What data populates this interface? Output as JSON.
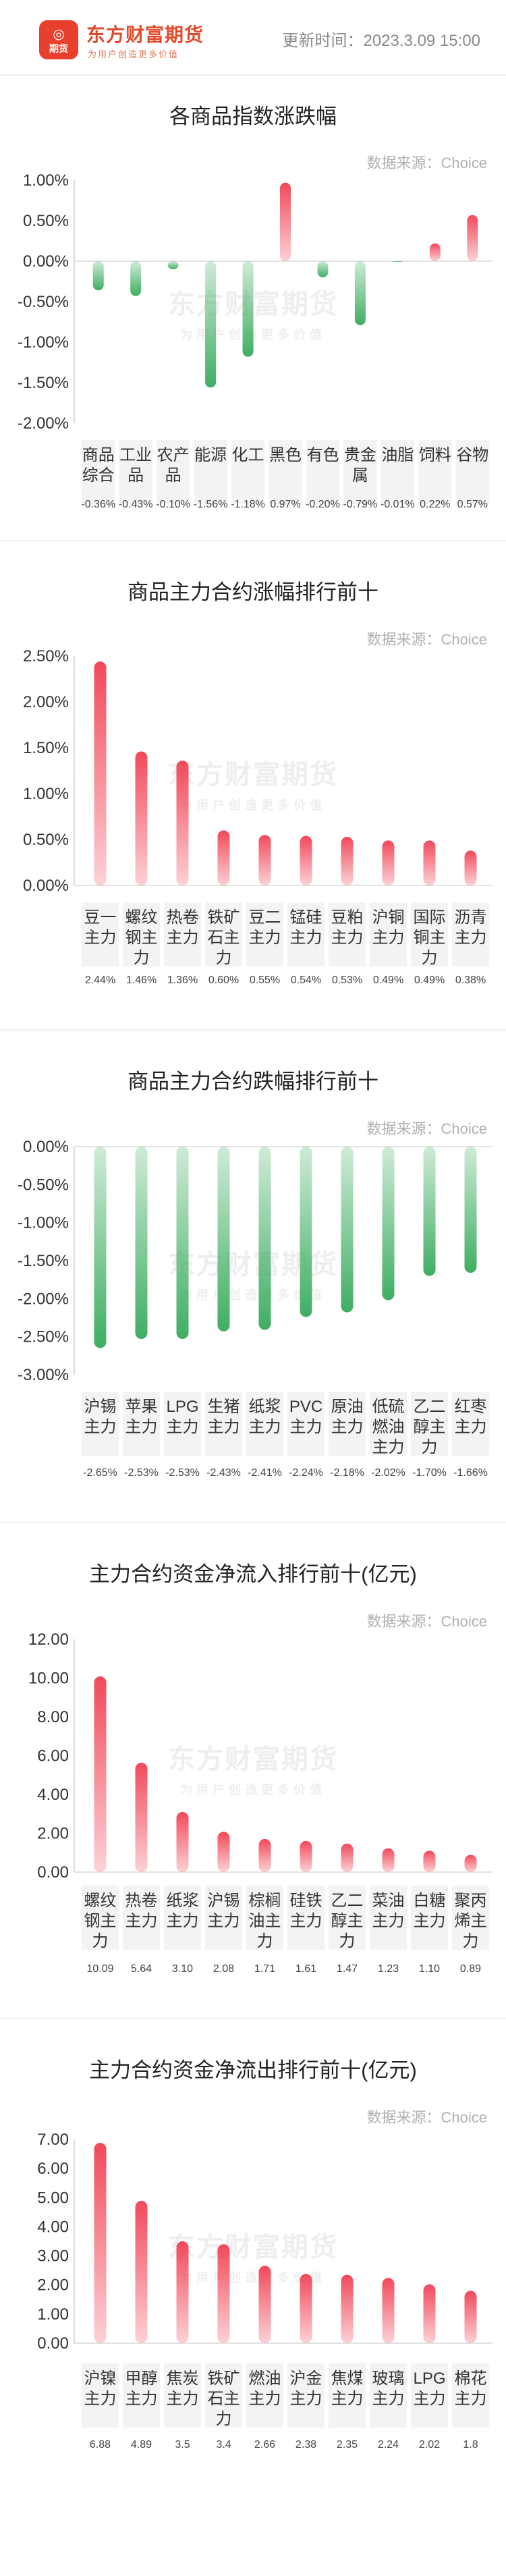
{
  "header": {
    "logo_glyph": "◎",
    "logo_sub": "期货",
    "brand_name": "东方财富期货",
    "slogan": "为用户创造更多价值",
    "update_time": "更新时间：2023.3.09 15:00"
  },
  "watermark": {
    "main": "东方财富期货",
    "sub": "为用户创造更多价值"
  },
  "colors": {
    "positive": "#f2495a",
    "negative": "#3fae62"
  },
  "sections": [
    {
      "title": "各商品指数涨跌幅",
      "source": "数据来源：Choice",
      "chart_data": {
        "type": "bar",
        "categories": [
          "商品\n综合",
          "工业\n品",
          "农产\n品",
          "能源",
          "化工",
          "黑色",
          "有色",
          "贵金\n属",
          "油脂",
          "饲料",
          "谷物"
        ],
        "values": [
          -0.36,
          -0.43,
          -0.1,
          -1.56,
          -1.18,
          0.97,
          -0.2,
          -0.79,
          -0.01,
          0.22,
          0.57
        ],
        "value_labels": [
          "-0.36%",
          "-0.43%",
          "-0.10%",
          "-1.56%",
          "-1.18%",
          "0.97%",
          "-0.20%",
          "-0.79%",
          "-0.01%",
          "0.22%",
          "0.57%"
        ],
        "ylim": [
          -2.0,
          1.0
        ],
        "yticks": [
          1.0,
          0.5,
          0.0,
          -0.5,
          -1.0,
          -1.5,
          -2.0
        ],
        "ytick_labels": [
          "1.00%",
          "0.50%",
          "0.00%",
          "-0.50%",
          "-1.00%",
          "-1.50%",
          "-2.00%"
        ],
        "xlabel": "",
        "ylabel": "",
        "grid": false
      }
    },
    {
      "title": "商品主力合约涨幅排行前十",
      "source": "数据来源：Choice",
      "chart_data": {
        "type": "bar",
        "categories": [
          "豆一\n主力",
          "螺纹\n钢主\n力",
          "热卷\n主力",
          "铁矿\n石主\n力",
          "豆二\n主力",
          "锰硅\n主力",
          "豆粕\n主力",
          "沪铜\n主力",
          "国际\n铜主\n力",
          "沥青\n主力"
        ],
        "values": [
          2.44,
          1.46,
          1.36,
          0.6,
          0.55,
          0.54,
          0.53,
          0.49,
          0.49,
          0.38
        ],
        "value_labels": [
          "2.44%",
          "1.46%",
          "1.36%",
          "0.60%",
          "0.55%",
          "0.54%",
          "0.53%",
          "0.49%",
          "0.49%",
          "0.38%"
        ],
        "ylim": [
          0,
          2.5
        ],
        "yticks": [
          2.5,
          2.0,
          1.5,
          1.0,
          0.5,
          0.0
        ],
        "ytick_labels": [
          "2.50%",
          "2.00%",
          "1.50%",
          "1.00%",
          "0.50%",
          "0.00%"
        ],
        "xlabel": "",
        "ylabel": "",
        "grid": false
      }
    },
    {
      "title": "商品主力合约跌幅排行前十",
      "source": "数据来源：Choice",
      "chart_data": {
        "type": "bar",
        "categories": [
          "沪锡\n主力",
          "苹果\n主力",
          "LPG\n主力",
          "生猪\n主力",
          "纸浆\n主力",
          "PVC\n主力",
          "原油\n主力",
          "低硫\n燃油\n主力",
          "乙二\n醇主\n力",
          "红枣\n主力"
        ],
        "values": [
          -2.65,
          -2.53,
          -2.53,
          -2.43,
          -2.41,
          -2.24,
          -2.18,
          -2.02,
          -1.7,
          -1.66
        ],
        "value_labels": [
          "-2.65%",
          "-2.53%",
          "-2.53%",
          "-2.43%",
          "-2.41%",
          "-2.24%",
          "-2.18%",
          "-2.02%",
          "-1.70%",
          "-1.66%"
        ],
        "ylim": [
          -3.0,
          0
        ],
        "yticks": [
          0.0,
          -0.5,
          -1.0,
          -1.5,
          -2.0,
          -2.5,
          -3.0
        ],
        "ytick_labels": [
          "0.00%",
          "-0.50%",
          "-1.00%",
          "-1.50%",
          "-2.00%",
          "-2.50%",
          "-3.00%"
        ],
        "xlabel": "",
        "ylabel": "",
        "grid": false
      }
    },
    {
      "title": "主力合约资金净流入排行前十(亿元)",
      "source": "数据来源：Choice",
      "chart_data": {
        "type": "bar",
        "categories": [
          "螺纹\n钢主\n力",
          "热卷\n主力",
          "纸浆\n主力",
          "沪锡\n主力",
          "棕榈\n油主\n力",
          "硅铁\n主力",
          "乙二\n醇主\n力",
          "菜油\n主力",
          "白糖\n主力",
          "聚丙\n烯主\n力"
        ],
        "values": [
          10.09,
          5.64,
          3.1,
          2.08,
          1.71,
          1.61,
          1.47,
          1.23,
          1.1,
          0.89
        ],
        "value_labels": [
          "10.09",
          "5.64",
          "3.10",
          "2.08",
          "1.71",
          "1.61",
          "1.47",
          "1.23",
          "1.10",
          "0.89"
        ],
        "ylim": [
          0,
          12
        ],
        "yticks": [
          12,
          10,
          8,
          6,
          4,
          2,
          0
        ],
        "ytick_labels": [
          "12.00",
          "10.00",
          "8.00",
          "6.00",
          "4.00",
          "2.00",
          "0.00"
        ],
        "xlabel": "",
        "ylabel": "",
        "grid": false
      }
    },
    {
      "title": "主力合约资金净流出排行前十(亿元)",
      "source": "数据来源：Choice",
      "chart_data": {
        "type": "bar",
        "categories": [
          "沪镍\n主力",
          "甲醇\n主力",
          "焦炭\n主力",
          "铁矿\n石主\n力",
          "燃油\n主力",
          "沪金\n主力",
          "焦煤\n主力",
          "玻璃\n主力",
          "LPG\n主力",
          "棉花\n主力"
        ],
        "values": [
          6.88,
          4.89,
          3.5,
          3.4,
          2.66,
          2.38,
          2.35,
          2.24,
          2.02,
          1.8
        ],
        "value_labels": [
          "6.88",
          "4.89",
          "3.5",
          "3.4",
          "2.66",
          "2.38",
          "2.35",
          "2.24",
          "2.02",
          "1.8"
        ],
        "ylim": [
          0,
          7
        ],
        "yticks": [
          7,
          6,
          5,
          4,
          3,
          2,
          1,
          0
        ],
        "ytick_labels": [
          "7.00",
          "6.00",
          "5.00",
          "4.00",
          "3.00",
          "2.00",
          "1.00",
          "0.00"
        ],
        "xlabel": "",
        "ylabel": "",
        "grid": false
      }
    }
  ]
}
